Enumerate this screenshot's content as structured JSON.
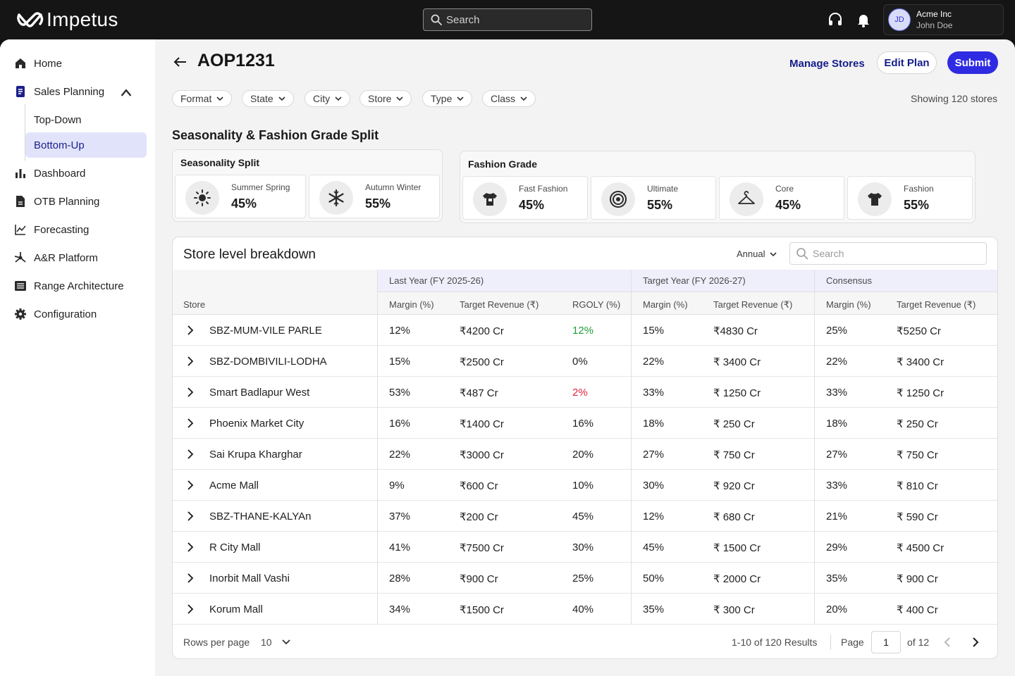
{
  "app": {
    "brand": "Impetus",
    "search_placeholder": "Search",
    "user": {
      "initials": "JD",
      "org": "Acme Inc",
      "name": "John Doe"
    }
  },
  "sidebar": {
    "items": [
      {
        "label": "Home",
        "icon": "home-icon"
      },
      {
        "label": "Sales Planning",
        "icon": "document-icon",
        "expanded": true,
        "children": [
          {
            "label": "Top-Down"
          },
          {
            "label": "Bottom-Up",
            "active": true
          }
        ]
      },
      {
        "label": "Dashboard",
        "icon": "bar-chart-icon"
      },
      {
        "label": "OTB Planning",
        "icon": "file-icon"
      },
      {
        "label": "Forecasting",
        "icon": "line-chart-icon"
      },
      {
        "label": "A&R Platform",
        "icon": "network-icon"
      },
      {
        "label": "Range Architecture",
        "icon": "list-icon"
      },
      {
        "label": "Configuration",
        "icon": "gear-icon"
      }
    ]
  },
  "header": {
    "title": "AOP1231",
    "manage_stores": "Manage Stores",
    "edit_plan": "Edit Plan",
    "submit": "Submit"
  },
  "filters": [
    "Format",
    "State",
    "City",
    "Store",
    "Type",
    "Class"
  ],
  "showing": "Showing 120 stores",
  "section_title": "Seasonality & Fashion Grade Split",
  "seasonality": {
    "title": "Seasonality Split",
    "items": [
      {
        "label": "Summer Spring",
        "value": "45%",
        "icon": "sun-icon"
      },
      {
        "label": "Autumn Winter",
        "value": "55%",
        "icon": "snowflake-icon"
      }
    ]
  },
  "fashion_grade": {
    "title": "Fashion Grade",
    "items": [
      {
        "label": "Fast Fashion",
        "value": "45%",
        "icon": "tshirt-icon"
      },
      {
        "label": "Ultimate",
        "value": "55%",
        "icon": "target-icon"
      },
      {
        "label": "Core",
        "value": "45%",
        "icon": "hanger-icon"
      },
      {
        "label": "Fashion",
        "value": "55%",
        "icon": "shirt-icon"
      }
    ]
  },
  "table": {
    "title": "Store level breakdown",
    "period": "Annual",
    "search_placeholder": "Search",
    "groups": [
      "Last Year (FY 2025-26)",
      "Target Year (FY 2026-27)",
      "Consensus"
    ],
    "columns": {
      "store": "Store",
      "ly_margin": "Margin (%)",
      "ly_revenue": "Target Revenue (₹)",
      "ly_rgoly": "RGOLY (%)",
      "ty_margin": "Margin (%)",
      "ty_revenue": "Target Revenue (₹)",
      "c_margin": "Margin (%)",
      "c_revenue": "Target Revenue (₹)"
    },
    "colors": {
      "positive": "#1f9d3a",
      "negative": "#e0243c"
    },
    "rows": [
      {
        "store": "SBZ-MUM-VILE PARLE",
        "ly_margin": "12%",
        "ly_revenue": "₹4200 Cr",
        "ly_rgoly": "12%",
        "rgoly_tone": "positive",
        "ty_margin": "15%",
        "ty_revenue": "₹4830 Cr",
        "c_margin": "25%",
        "c_revenue": "₹5250 Cr"
      },
      {
        "store": "SBZ-DOMBIVILI-LODHA",
        "ly_margin": "15%",
        "ly_revenue": "₹2500 Cr",
        "ly_rgoly": "0%",
        "rgoly_tone": "neutral",
        "ty_margin": "22%",
        "ty_revenue": "₹ 3400 Cr",
        "c_margin": "22%",
        "c_revenue": "₹ 3400 Cr"
      },
      {
        "store": "Smart Badlapur West",
        "ly_margin": "53%",
        "ly_revenue": "₹487 Cr",
        "ly_rgoly": "2%",
        "rgoly_tone": "negative",
        "ty_margin": "33%",
        "ty_revenue": "₹ 1250 Cr",
        "c_margin": "33%",
        "c_revenue": "₹ 1250 Cr"
      },
      {
        "store": "Phoenix Market City",
        "ly_margin": "16%",
        "ly_revenue": "₹1400 Cr",
        "ly_rgoly": "16%",
        "rgoly_tone": "neutral",
        "ty_margin": "18%",
        "ty_revenue": "₹ 250 Cr",
        "c_margin": "18%",
        "c_revenue": "₹ 250 Cr"
      },
      {
        "store": "Sai Krupa Kharghar",
        "ly_margin": "22%",
        "ly_revenue": "₹3000 Cr",
        "ly_rgoly": "20%",
        "rgoly_tone": "neutral",
        "ty_margin": "27%",
        "ty_revenue": "₹ 750 Cr",
        "c_margin": "27%",
        "c_revenue": "₹ 750 Cr"
      },
      {
        "store": "Acme Mall",
        "ly_margin": "9%",
        "ly_revenue": "₹600 Cr",
        "ly_rgoly": "10%",
        "rgoly_tone": "neutral",
        "ty_margin": "30%",
        "ty_revenue": "₹ 920 Cr",
        "c_margin": "33%",
        "c_revenue": "₹ 810 Cr"
      },
      {
        "store": "SBZ-THANE-KALYAn",
        "ly_margin": "37%",
        "ly_revenue": "₹200 Cr",
        "ly_rgoly": "45%",
        "rgoly_tone": "neutral",
        "ty_margin": "12%",
        "ty_revenue": "₹ 680 Cr",
        "c_margin": "21%",
        "c_revenue": "₹ 590 Cr"
      },
      {
        "store": "R City Mall",
        "ly_margin": "41%",
        "ly_revenue": "₹7500 Cr",
        "ly_rgoly": "30%",
        "rgoly_tone": "neutral",
        "ty_margin": "45%",
        "ty_revenue": "₹ 1500 Cr",
        "c_margin": "29%",
        "c_revenue": "₹ 4500 Cr"
      },
      {
        "store": "Inorbit Mall Vashi",
        "ly_margin": "28%",
        "ly_revenue": "₹900 Cr",
        "ly_rgoly": "25%",
        "rgoly_tone": "neutral",
        "ty_margin": "50%",
        "ty_revenue": "₹ 2000 Cr",
        "c_margin": "35%",
        "c_revenue": "₹ 900 Cr"
      },
      {
        "store": "Korum Mall",
        "ly_margin": "34%",
        "ly_revenue": "₹1500 Cr",
        "ly_rgoly": "40%",
        "rgoly_tone": "neutral",
        "ty_margin": "35%",
        "ty_revenue": "₹ 300 Cr",
        "c_margin": "20%",
        "c_revenue": "₹ 400 Cr"
      }
    ],
    "footer": {
      "rows_per_page_label": "Rows per page",
      "rows_per_page": "10",
      "results": "1-10 of 120 Results",
      "page_label": "Page",
      "page": "1",
      "of_pages": "of 12"
    }
  }
}
